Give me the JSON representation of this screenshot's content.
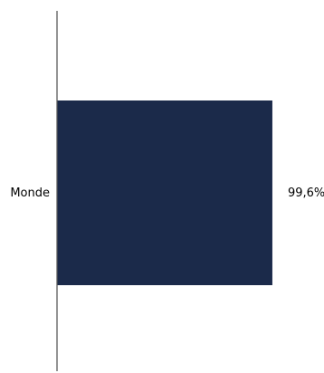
{
  "chart_data": {
    "type": "bar",
    "orientation": "horizontal",
    "categories": [
      "Monde"
    ],
    "series": [
      {
        "values": [
          99.6
        ],
        "value_labels": [
          "99,6%"
        ]
      }
    ],
    "xlim": [
      0,
      100
    ],
    "grid": false,
    "legend": "none",
    "colors": {
      "bar": "#1b2a4a",
      "axis": "#595959",
      "text": "#000000"
    }
  }
}
